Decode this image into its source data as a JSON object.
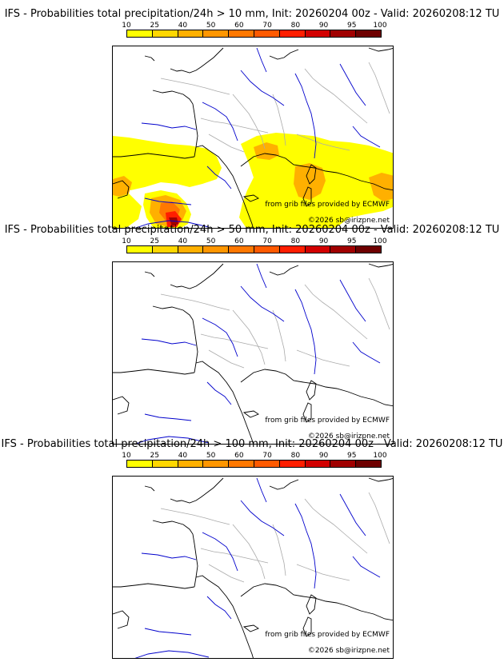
{
  "panels": [
    {
      "title": "IFS - Probabilities total precipitation/24h > 10 mm, Init: 20260204 00z - Valid: 20260208:12 TU",
      "has_precip": true
    },
    {
      "title": "IFS - Probabilities total precipitation/24h > 50 mm, Init: 20260204 00z - Valid: 20260208:12 TU",
      "has_precip": false
    },
    {
      "title": "IFS - Probabilities total precipitation/24h > 100 mm, Init: 20260204 00z - Valid: 20260208:12 TU",
      "has_precip": false
    }
  ],
  "colorbar": {
    "ticks": [
      "10",
      "25",
      "40",
      "50",
      "60",
      "70",
      "80",
      "90",
      "95",
      "100"
    ],
    "colors": [
      "#ffff00",
      "#ffd700",
      "#ffb000",
      "#ff9600",
      "#ff7800",
      "#ff5a00",
      "#ff1e00",
      "#d20000",
      "#a00000",
      "#6e0000"
    ]
  },
  "credits": {
    "source": "from grib files provided by ECMWF",
    "copyright": "©2026 sb@irizpne.net"
  },
  "map_colors": {
    "coast": "#000000",
    "rivers": "#0000cc",
    "borders": "#aaaaaa"
  }
}
